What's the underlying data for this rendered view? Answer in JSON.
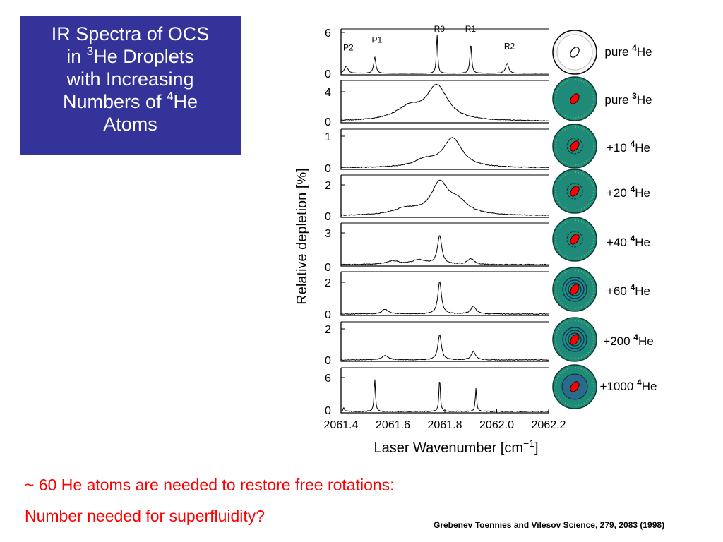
{
  "title": {
    "line1": "IR Spectra of OCS",
    "line2_pre": "in ",
    "line2_sup": "3",
    "line2_post": "He Droplets",
    "line3": "with Increasing",
    "line4_pre": "Numbers of ",
    "line4_sup": "4",
    "line4_post": "He",
    "line5": "Atoms"
  },
  "caption": {
    "line1": "~ 60 He atoms are needed to restore free rotations:",
    "line2": "Number needed for superfluidity?"
  },
  "citation": "Grebenev Toennies and Vilesov Science, 279, 2083 (1998)",
  "colors": {
    "title_bg": "#333399",
    "title_text": "#ffffff",
    "caption": "#ff0000",
    "droplet_fill": "#1f8a78",
    "molecule": "#ff0000"
  },
  "chart_data": {
    "type": "line",
    "xlabel": "Laser Wavenumber [cm",
    "xlabel_sup": "−1",
    "xlabel_close": "]",
    "ylabel": "Relative depletion [%]",
    "xlim": [
      2061.4,
      2062.2
    ],
    "x_ticks": [
      "2061.4",
      "2061.6",
      "2061.8",
      "2062.0",
      "2062.2"
    ],
    "panels": [
      {
        "label_pre": "pure ",
        "label_sup": "4",
        "label_post": "He",
        "droplet": "clear",
        "ylim": [
          0,
          6
        ],
        "ytick_top": "6",
        "ytick_bottom": "0",
        "peaks": [
          {
            "x": 2061.42,
            "y": 1.0,
            "w": 0.008
          },
          {
            "x": 2061.53,
            "y": 2.3,
            "w": 0.005
          },
          {
            "x": 2061.77,
            "y": 5.6,
            "w": 0.003
          },
          {
            "x": 2061.9,
            "y": 4.2,
            "w": 0.004
          },
          {
            "x": 2062.04,
            "y": 1.4,
            "w": 0.007
          }
        ],
        "peak_labels": [
          {
            "text": "P2",
            "x": 2061.43,
            "y": 3.2
          },
          {
            "text": "P1",
            "x": 2061.54,
            "y": 4.3
          },
          {
            "text": "R0",
            "x": 2061.78,
            "y": 5.8
          },
          {
            "text": "R1",
            "x": 2061.9,
            "y": 5.8
          },
          {
            "text": "R2",
            "x": 2062.05,
            "y": 3.4
          }
        ]
      },
      {
        "label_pre": "pure ",
        "label_sup": "3",
        "label_post": "He",
        "droplet": "plain",
        "ylim": [
          0,
          4.6
        ],
        "ytick_top": "4",
        "ytick_bottom": "0",
        "peaks": [
          {
            "x": 2061.77,
            "y": 4.0,
            "w": 0.05
          },
          {
            "x": 2061.66,
            "y": 1.4,
            "w": 0.06
          }
        ]
      },
      {
        "label_pre": "+10 ",
        "label_sup": "4",
        "label_post": "He",
        "droplet": "ring",
        "ylim": [
          0,
          1.15
        ],
        "ytick_top": "1",
        "ytick_bottom": "0",
        "peaks": [
          {
            "x": 2061.83,
            "y": 0.9,
            "w": 0.045
          },
          {
            "x": 2061.72,
            "y": 0.2,
            "w": 0.05
          }
        ]
      },
      {
        "label_pre": "+20 ",
        "label_sup": "4",
        "label_post": "He",
        "droplet": "ring",
        "ylim": [
          0,
          2.6
        ],
        "ytick_top": "2",
        "ytick_bottom": "0",
        "peaks": [
          {
            "x": 2061.78,
            "y": 2.0,
            "w": 0.04
          },
          {
            "x": 2061.85,
            "y": 0.8,
            "w": 0.05
          },
          {
            "x": 2061.65,
            "y": 0.4,
            "w": 0.06
          }
        ]
      },
      {
        "label_pre": "+40 ",
        "label_sup": "4",
        "label_post": "He",
        "droplet": "ring",
        "ylim": [
          0,
          3.5
        ],
        "ytick_top": "3",
        "ytick_bottom": "0",
        "peaks": [
          {
            "x": 2061.78,
            "y": 2.5,
            "w": 0.01
          },
          {
            "x": 2061.9,
            "y": 0.5,
            "w": 0.015
          },
          {
            "x": 2061.6,
            "y": 0.3,
            "w": 0.03
          },
          {
            "x": 2061.7,
            "y": 0.4,
            "w": 0.03
          }
        ]
      },
      {
        "label_pre": "+60 ",
        "label_sup": "4",
        "label_post": "He",
        "droplet": "shells",
        "ylim": [
          0,
          2.6
        ],
        "ytick_top": "2",
        "ytick_bottom": "0",
        "peaks": [
          {
            "x": 2061.78,
            "y": 2.1,
            "w": 0.008
          },
          {
            "x": 2061.91,
            "y": 0.5,
            "w": 0.012
          },
          {
            "x": 2061.57,
            "y": 0.3,
            "w": 0.015
          }
        ]
      },
      {
        "label_pre": "+200 ",
        "label_sup": "4",
        "label_post": "He",
        "droplet": "shells",
        "ylim": [
          0,
          2.6
        ],
        "ytick_top": "2",
        "ytick_bottom": "0",
        "peaks": [
          {
            "x": 2061.78,
            "y": 1.8,
            "w": 0.008
          },
          {
            "x": 2061.91,
            "y": 0.6,
            "w": 0.01
          },
          {
            "x": 2061.57,
            "y": 0.3,
            "w": 0.015
          }
        ]
      },
      {
        "label_pre": "+1000 ",
        "label_sup": "4",
        "label_post": "He",
        "droplet": "halo",
        "ylim": [
          0,
          7
        ],
        "ytick_top": "6",
        "ytick_bottom": "0",
        "peaks": [
          {
            "x": 2061.53,
            "y": 5.5,
            "w": 0.003
          },
          {
            "x": 2061.78,
            "y": 5.8,
            "w": 0.003
          },
          {
            "x": 2061.92,
            "y": 3.8,
            "w": 0.003
          },
          {
            "x": 2061.41,
            "y": 0.6,
            "w": 0.003
          }
        ]
      }
    ]
  }
}
